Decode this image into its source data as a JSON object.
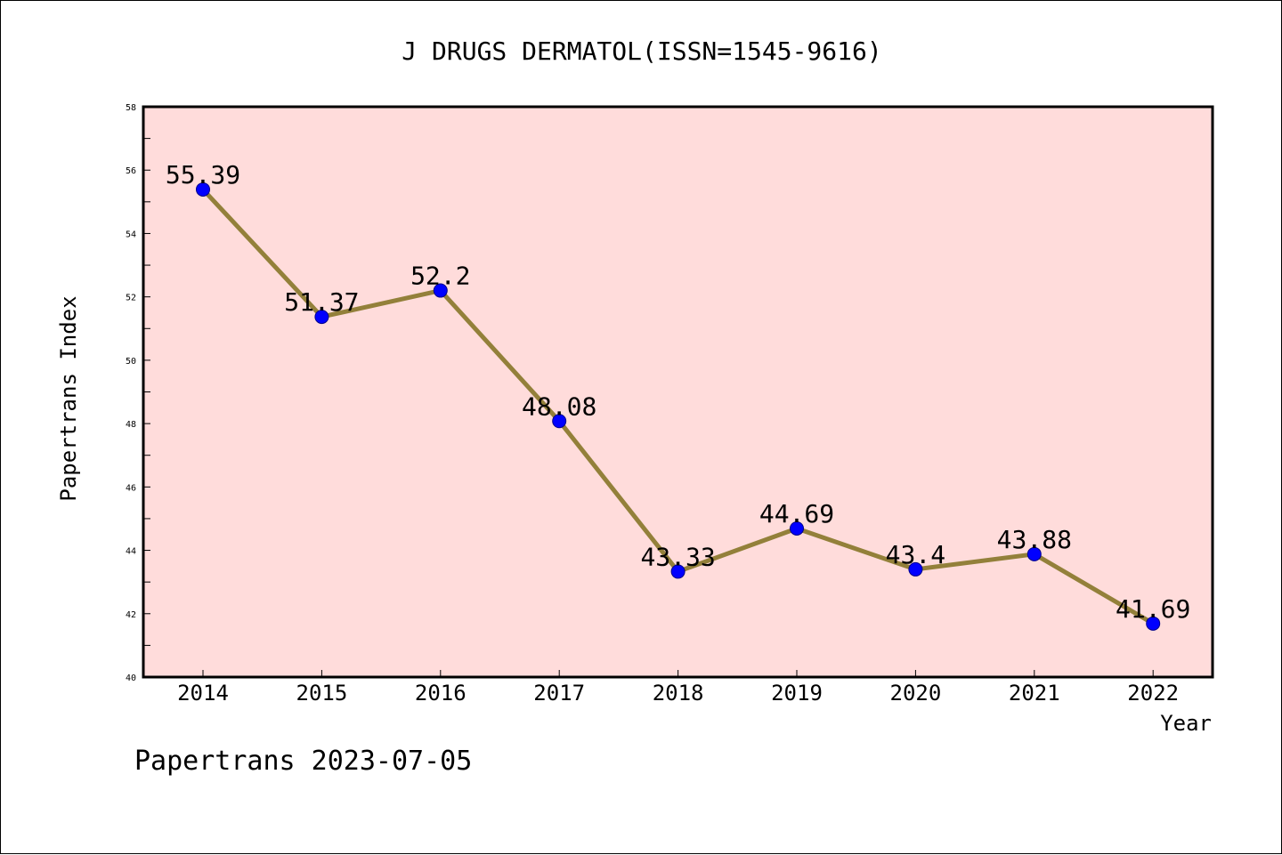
{
  "chart_data": {
    "type": "line",
    "title": "J DRUGS DERMATOL(ISSN=1545-9616)",
    "xlabel": "Year",
    "ylabel": "Papertrans Index",
    "categories": [
      "2014",
      "2015",
      "2016",
      "2017",
      "2018",
      "2019",
      "2020",
      "2021",
      "2022"
    ],
    "values": [
      55.39,
      51.37,
      52.2,
      48.08,
      43.33,
      44.69,
      43.4,
      43.88,
      41.69
    ],
    "data_labels": [
      "55.39",
      "51.37",
      "52.2",
      "48.08",
      "43.33",
      "44.69",
      "43.4",
      "43.88",
      "41.69"
    ],
    "ylim": [
      40,
      58
    ],
    "yticks": [
      "40",
      "42",
      "44",
      "46",
      "48",
      "50",
      "52",
      "54",
      "56",
      "58"
    ],
    "grid": false,
    "colors": {
      "plot_background": "#ffdcdb",
      "line": "#93803a",
      "marker": "#0000ff"
    }
  },
  "footer": "Papertrans 2023-07-05"
}
